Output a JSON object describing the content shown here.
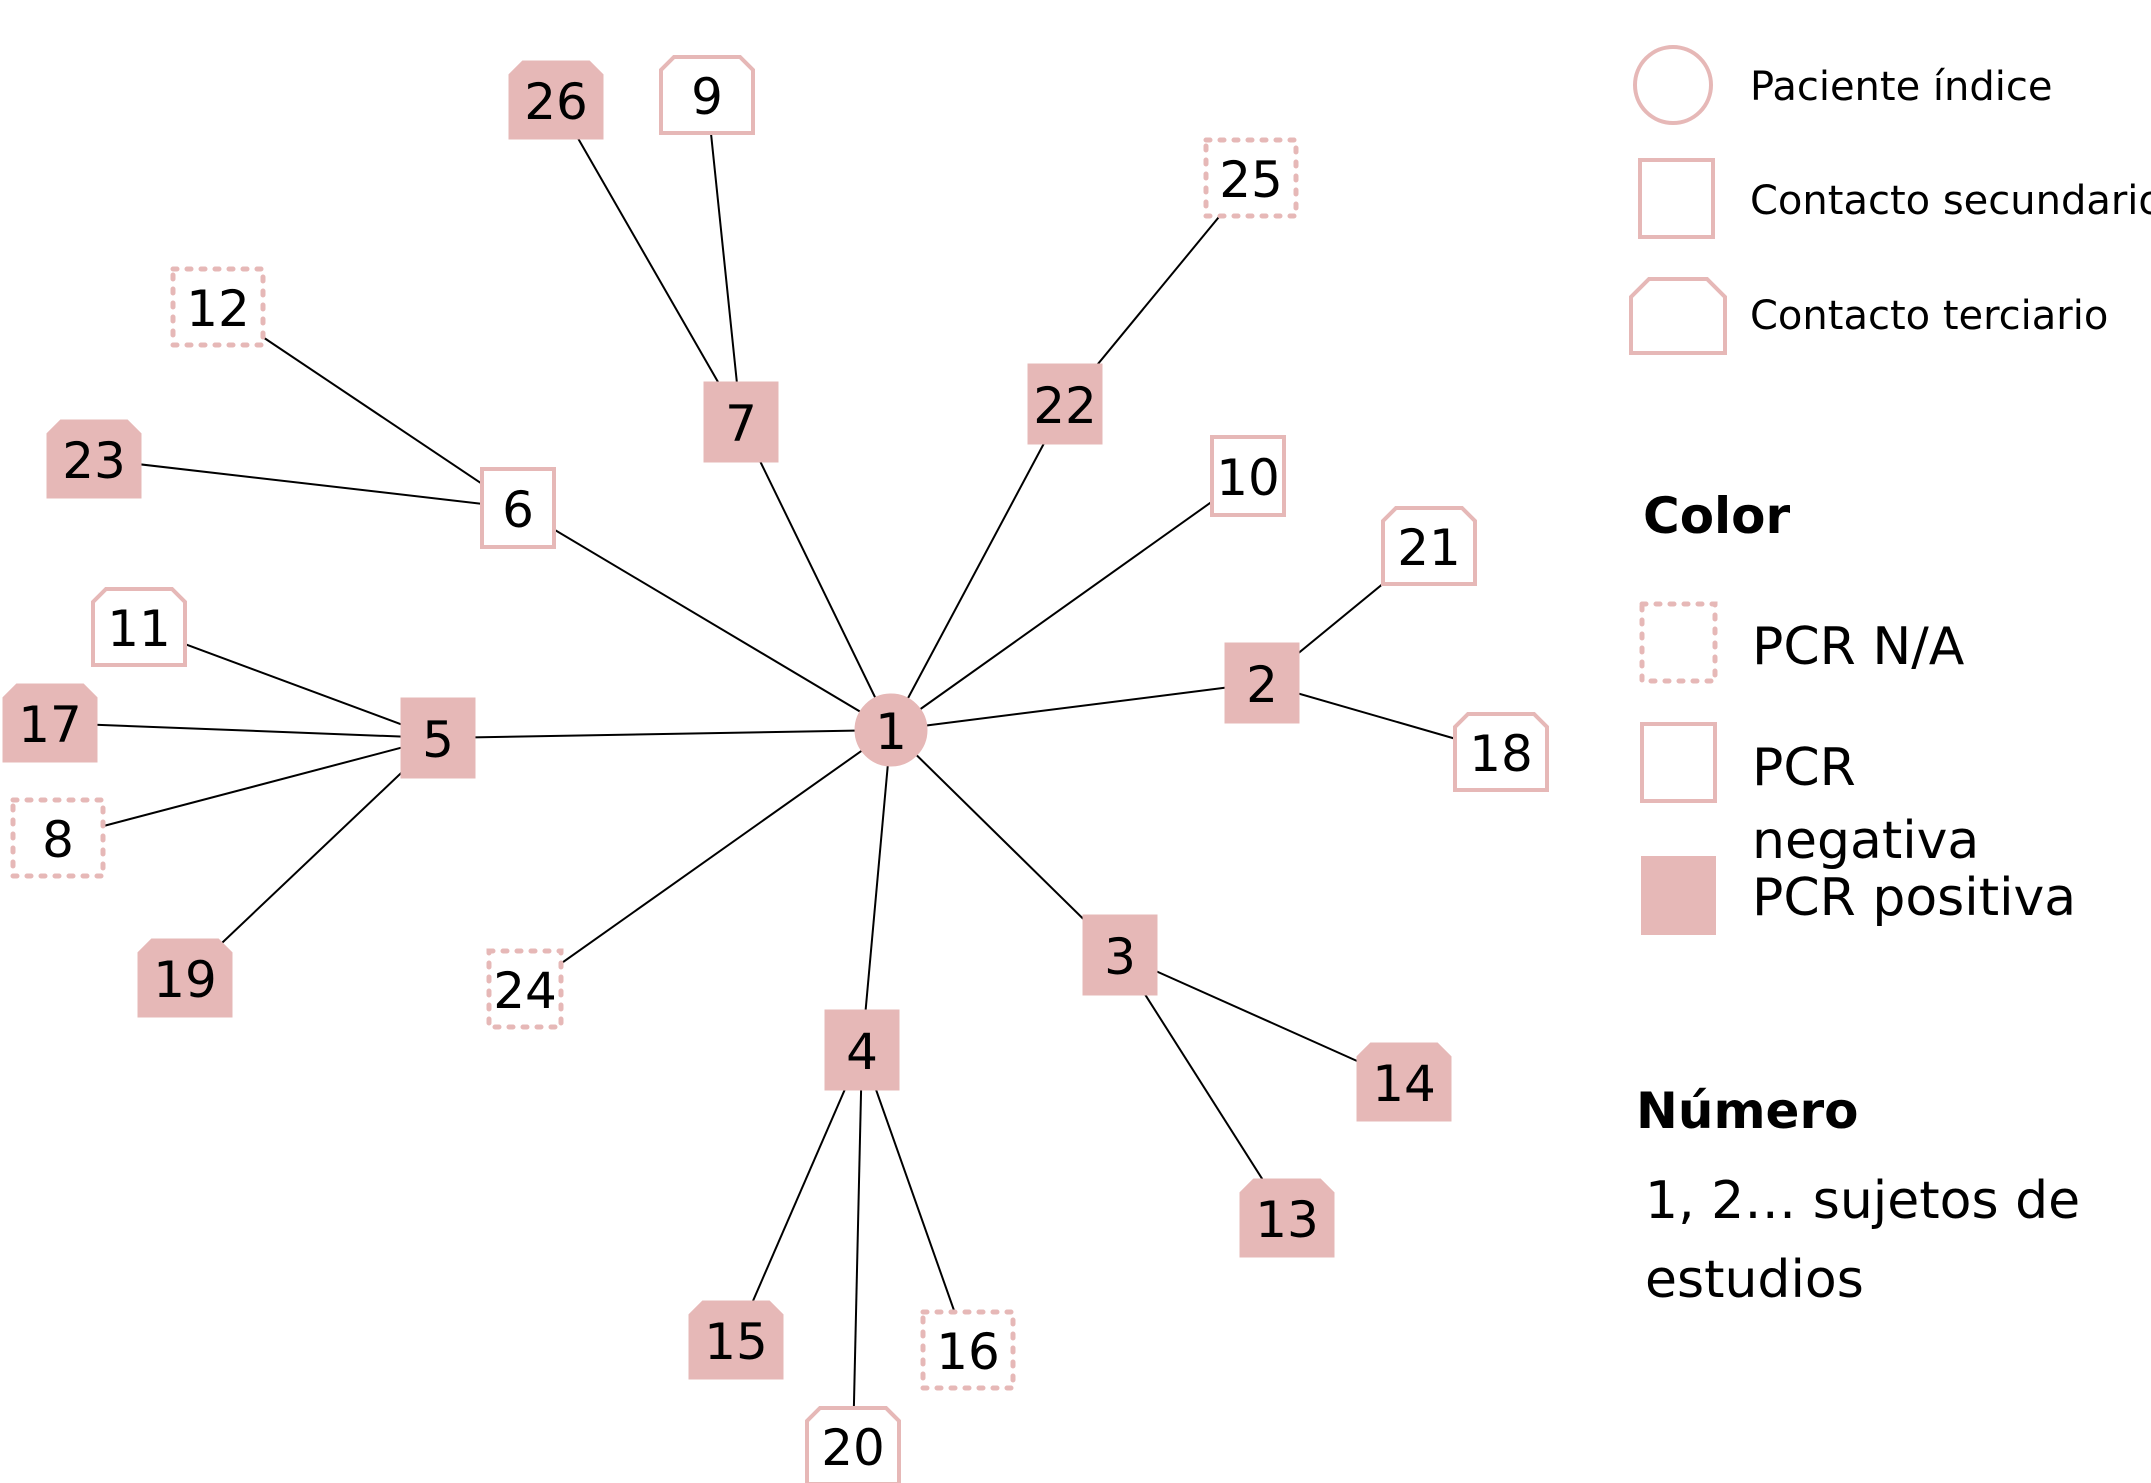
{
  "colors": {
    "pink": "#e6b8b7",
    "edge": "#000000",
    "text": "#000000",
    "background": "#ffffff"
  },
  "legend": {
    "shape": {
      "index": "Paciente índice",
      "secondary": "Contacto secundario",
      "tertiary": "Contacto terciario"
    },
    "color": {
      "title": "Color",
      "na": "PCR N/A",
      "negative_line1": "PCR",
      "negative_line2": "negativa",
      "positive": "PCR positiva"
    },
    "number": {
      "title": "Número",
      "line1": "1, 2… sujetos de",
      "line2": "estudios"
    }
  },
  "nodes": [
    {
      "id": "1",
      "shape": "circle",
      "pcr": "positive"
    },
    {
      "id": "2",
      "shape": "square",
      "pcr": "positive"
    },
    {
      "id": "3",
      "shape": "square",
      "pcr": "positive"
    },
    {
      "id": "4",
      "shape": "square",
      "pcr": "positive"
    },
    {
      "id": "5",
      "shape": "square",
      "pcr": "positive"
    },
    {
      "id": "6",
      "shape": "square",
      "pcr": "negative"
    },
    {
      "id": "7",
      "shape": "square",
      "pcr": "positive"
    },
    {
      "id": "8",
      "shape": "square",
      "pcr": "na"
    },
    {
      "id": "9",
      "shape": "octagon",
      "pcr": "negative"
    },
    {
      "id": "10",
      "shape": "square",
      "pcr": "negative"
    },
    {
      "id": "11",
      "shape": "octagon",
      "pcr": "negative"
    },
    {
      "id": "12",
      "shape": "square",
      "pcr": "na"
    },
    {
      "id": "13",
      "shape": "octagon",
      "pcr": "positive"
    },
    {
      "id": "14",
      "shape": "octagon",
      "pcr": "positive"
    },
    {
      "id": "15",
      "shape": "octagon",
      "pcr": "positive"
    },
    {
      "id": "16",
      "shape": "square",
      "pcr": "na"
    },
    {
      "id": "17",
      "shape": "octagon",
      "pcr": "positive"
    },
    {
      "id": "18",
      "shape": "octagon",
      "pcr": "negative"
    },
    {
      "id": "19",
      "shape": "octagon",
      "pcr": "positive"
    },
    {
      "id": "20",
      "shape": "octagon",
      "pcr": "negative"
    },
    {
      "id": "21",
      "shape": "octagon",
      "pcr": "negative"
    },
    {
      "id": "22",
      "shape": "square",
      "pcr": "positive"
    },
    {
      "id": "23",
      "shape": "octagon",
      "pcr": "positive"
    },
    {
      "id": "24",
      "shape": "square",
      "pcr": "na"
    },
    {
      "id": "25",
      "shape": "square",
      "pcr": "na"
    },
    {
      "id": "26",
      "shape": "octagon",
      "pcr": "positive"
    }
  ],
  "edges": [
    [
      "1",
      "2"
    ],
    [
      "1",
      "3"
    ],
    [
      "1",
      "4"
    ],
    [
      "1",
      "5"
    ],
    [
      "1",
      "6"
    ],
    [
      "1",
      "7"
    ],
    [
      "1",
      "10"
    ],
    [
      "1",
      "22"
    ],
    [
      "1",
      "24"
    ],
    [
      "2",
      "21"
    ],
    [
      "2",
      "18"
    ],
    [
      "3",
      "14"
    ],
    [
      "3",
      "13"
    ],
    [
      "4",
      "15"
    ],
    [
      "4",
      "20"
    ],
    [
      "4",
      "16"
    ],
    [
      "5",
      "11"
    ],
    [
      "5",
      "17"
    ],
    [
      "5",
      "8"
    ],
    [
      "5",
      "19"
    ],
    [
      "6",
      "12"
    ],
    [
      "6",
      "23"
    ],
    [
      "7",
      "26"
    ],
    [
      "7",
      "9"
    ],
    [
      "22",
      "25"
    ]
  ]
}
